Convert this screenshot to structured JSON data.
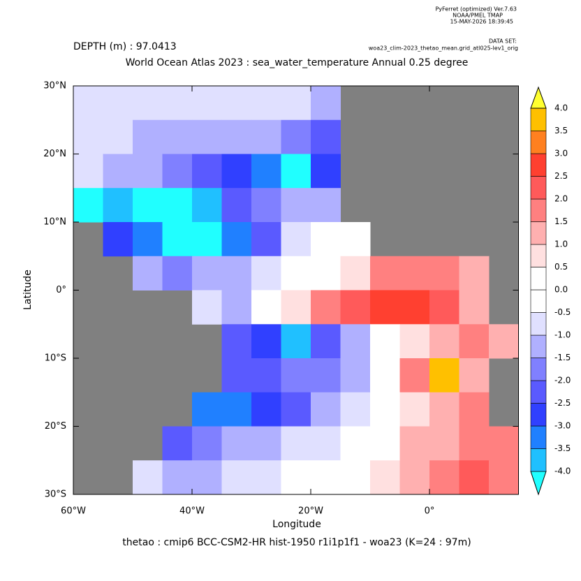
{
  "chart_data": {
    "type": "heatmap",
    "header": [
      "PyFerret (optimized) Ver.7.63",
      "NOAA/PMEL TMAP",
      "15-MAY-2026 18:39:45"
    ],
    "dataset_label": "DATA SET:",
    "dataset": "woa23_clim-2023_thetao_mean.grid_atl025-lev1_orig",
    "depth": "DEPTH (m) : 97.0413",
    "title": "World Ocean Atlas 2023 : sea_water_temperature Annual  0.25 degree",
    "xlabel": "Longitude",
    "ylabel": "Latitude",
    "footer": "thetao : cmip6 BCC-CSM2-HR hist-1950 r1i1p1f1 - woa23  (K=24 : 97m)",
    "xlim": [
      -60,
      15
    ],
    "ylim": [
      -30,
      30
    ],
    "xticks": [
      {
        "value": -60,
        "label": "60°W"
      },
      {
        "value": -40,
        "label": "40°W"
      },
      {
        "value": -20,
        "label": "20°W"
      },
      {
        "value": 0,
        "label": "0°"
      }
    ],
    "yticks": [
      {
        "value": 30,
        "label": "30°N"
      },
      {
        "value": 20,
        "label": "20°N"
      },
      {
        "value": 10,
        "label": "10°N"
      },
      {
        "value": 0,
        "label": "0°"
      },
      {
        "value": -10,
        "label": "10°S"
      },
      {
        "value": -20,
        "label": "20°S"
      },
      {
        "value": -30,
        "label": "30°S"
      }
    ],
    "x": [
      -57.5,
      -52.5,
      -47.5,
      -42.5,
      -37.5,
      -32.5,
      -27.5,
      -22.5,
      -17.5,
      -12.5,
      -7.5,
      -2.5,
      2.5,
      7.5,
      12.5
    ],
    "y": [
      27.5,
      22.5,
      17.5,
      12.5,
      7.5,
      2.5,
      -2.5,
      -7.5,
      -12.5,
      -17.5,
      -22.5,
      -27.5
    ],
    "values": [
      [
        -1,
        -0.8,
        -1,
        -0.8,
        -0.8,
        -0.7,
        -0.7,
        -0.8,
        -1.2,
        null,
        null,
        null,
        null,
        null,
        null
      ],
      [
        -1,
        -1,
        -1.2,
        -1.5,
        -1.3,
        -1.2,
        -1.5,
        -2,
        -2.5,
        null,
        null,
        null,
        null,
        null,
        null
      ],
      [
        -0.8,
        -1.2,
        -1.5,
        -2,
        -2.5,
        -3,
        -3.5,
        -4.2,
        -3,
        null,
        null,
        null,
        null,
        null,
        null
      ],
      [
        -4.2,
        -3.8,
        -4.2,
        -4.2,
        -3.8,
        -2.5,
        -2,
        -1.5,
        -1.2,
        null,
        null,
        null,
        null,
        null,
        null
      ],
      [
        null,
        -3,
        -3.5,
        -4.2,
        -4.2,
        -3.5,
        -2.5,
        -1,
        -0.5,
        -0.3,
        null,
        null,
        null,
        null,
        null
      ],
      [
        null,
        null,
        -1.5,
        -2,
        -1.5,
        -1.2,
        -1,
        -0.5,
        0.3,
        0.8,
        1.5,
        1.8,
        1.5,
        1,
        null
      ],
      [
        null,
        null,
        null,
        null,
        -1,
        -1.2,
        -0.5,
        0.8,
        1.8,
        2.2,
        2.5,
        2.8,
        2,
        1.2,
        null
      ],
      [
        null,
        null,
        null,
        null,
        null,
        -2.5,
        -2.8,
        -3.8,
        -2.5,
        -1.2,
        -0.5,
        0.5,
        1.2,
        1.5,
        1
      ],
      [
        null,
        null,
        null,
        null,
        null,
        -2.5,
        -2.3,
        -2,
        -2,
        -1.2,
        0.3,
        1.8,
        3.8,
        1.2,
        null
      ],
      [
        null,
        null,
        null,
        null,
        -3.2,
        -3.3,
        -3,
        -2.5,
        -1.5,
        -0.8,
        0.3,
        0.8,
        1.2,
        1.5,
        null
      ],
      [
        null,
        null,
        null,
        -2.5,
        -1.8,
        -1.5,
        -1.3,
        -1,
        -0.8,
        -0.3,
        0.3,
        1,
        1.2,
        1.5,
        1.8
      ],
      [
        null,
        null,
        -1,
        -1.2,
        -1.3,
        -1,
        -0.8,
        -0.5,
        -0.3,
        0.2,
        0.5,
        1.3,
        1.5,
        2,
        1.5
      ]
    ],
    "land_color": "#808080",
    "levels": [
      {
        "value": -4,
        "label": "-4.0"
      },
      -3.5,
      {
        "value": -3,
        "label": "-3.0"
      },
      -2.5,
      {
        "value": -2,
        "label": "-2.0"
      },
      -1.5,
      {
        "value": -1,
        "label": "-1.0"
      },
      -0.5,
      {
        "value": 0,
        "label": "0.0"
      },
      0.5,
      {
        "value": 1,
        "label": "1.0"
      },
      1.5,
      {
        "value": 2,
        "label": "2.0"
      },
      2.5,
      {
        "value": 3,
        "label": "3.0"
      },
      3.5,
      {
        "value": 4,
        "label": "4.0"
      }
    ],
    "colors": [
      "#20ffff",
      "#20c0ff",
      "#2080ff",
      "#3040ff",
      "#5a5aff",
      "#8080ff",
      "#b0b0ff",
      "#e0e0ff",
      "#ffffff",
      "#ffffff",
      "#ffe0e0",
      "#ffb0b0",
      "#ff8080",
      "#ff5a5a",
      "#ff4030",
      "#ff8020",
      "#ffc000",
      "#ffff30"
    ]
  }
}
